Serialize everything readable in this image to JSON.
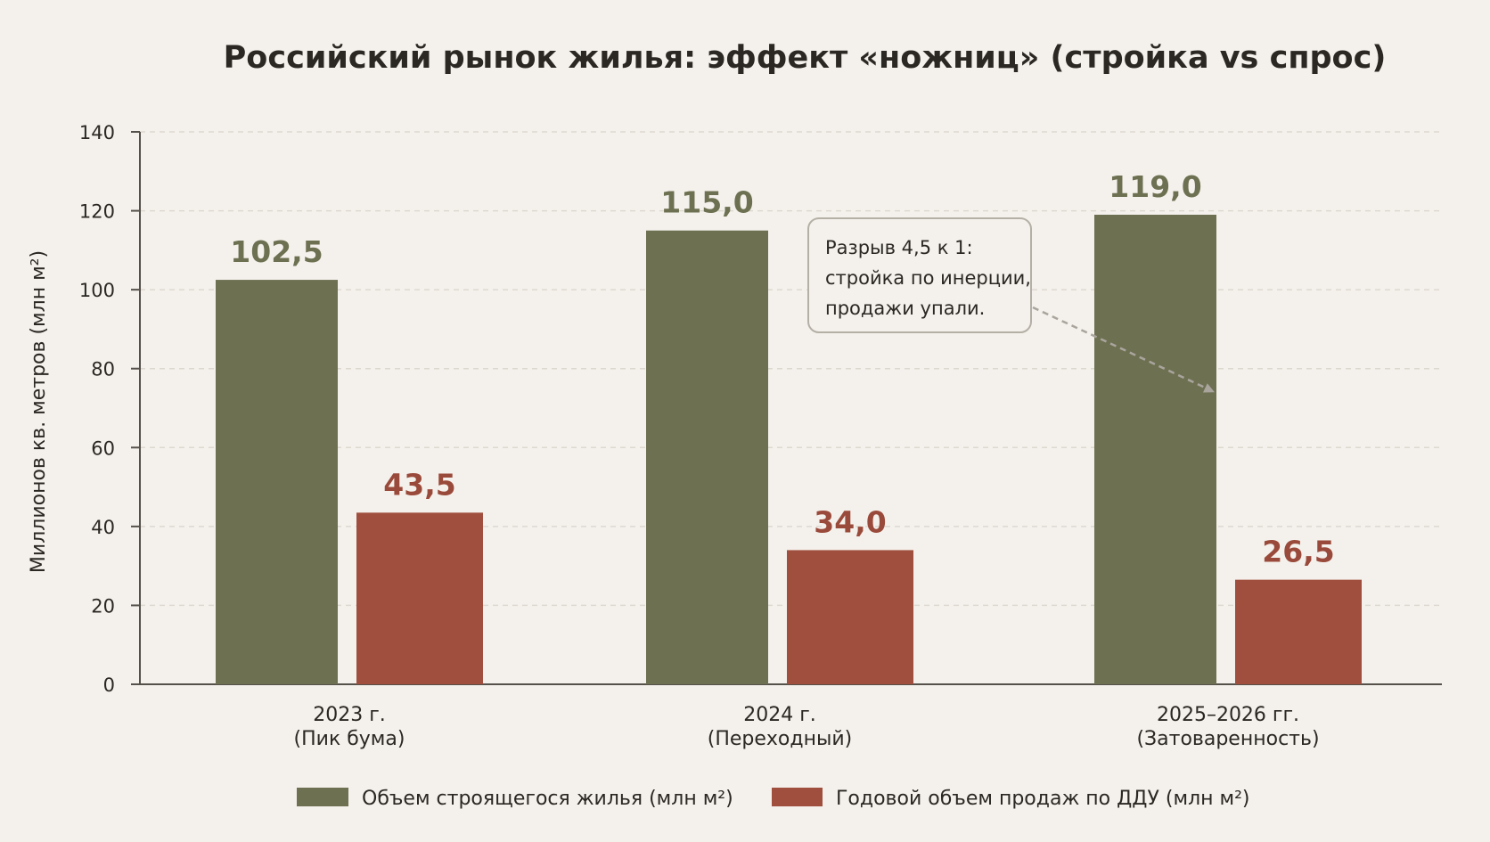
{
  "colors": {
    "background": "#f4f1ec",
    "construction": "#6d7051",
    "sales": "#a04f3f",
    "construction_label": "#6d7051",
    "sales_label": "#9a4a3a",
    "axis": "#55514a",
    "grid": "#ddd8cf",
    "annotation_border": "#b5b0a6",
    "annotation_fill": "#f4f1ec",
    "arrow": "#a9a59d"
  },
  "chart_data": {
    "type": "bar",
    "title": "Российский рынок жилья: эффект «ножниц» (стройка vs спрос)",
    "ylabel": "Миллионов кв. метров (млн м²)",
    "xlabel": "",
    "ylim": [
      0,
      140
    ],
    "yticks": [
      0,
      20,
      40,
      60,
      80,
      100,
      120,
      140
    ],
    "grid": true,
    "legend_position": "bottom",
    "categories": [
      {
        "line1": "2023 г.",
        "line2": "(Пик бума)"
      },
      {
        "line1": "2024 г.",
        "line2": "(Переходный)"
      },
      {
        "line1": "2025–2026 гг.",
        "line2": "(Затоваренность)"
      }
    ],
    "series": [
      {
        "name": "Объем строящегося жилья (млн м²)",
        "values": [
          102.5,
          115.0,
          119.0
        ],
        "value_labels": [
          "102,5",
          "115,0",
          "119,0"
        ]
      },
      {
        "name": "Годовой объем продаж по ДДУ (млн м²)",
        "values": [
          43.5,
          34.0,
          26.5
        ],
        "value_labels": [
          "43,5",
          "34,0",
          "26,5"
        ]
      }
    ],
    "annotation": {
      "lines": [
        "Разрыв 4,5 к 1:",
        "стройка по инерции,",
        "продажи упали."
      ],
      "points_to_category": 2,
      "points_to_value": 74
    }
  }
}
